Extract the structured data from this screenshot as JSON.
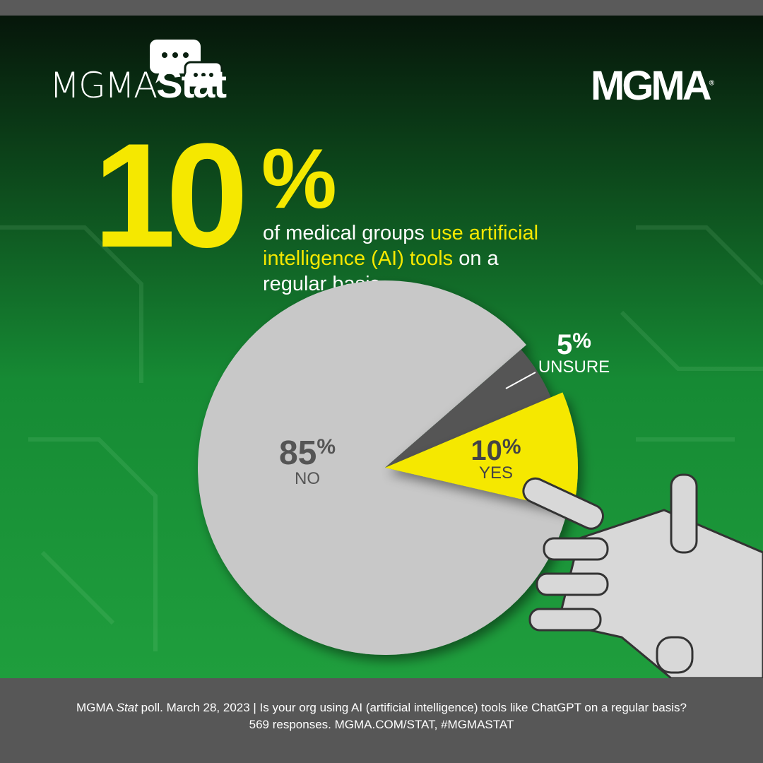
{
  "header": {
    "logo_left": {
      "prefix": "MGMA",
      "suffix": "Stat",
      "icon": "chat-bubbles-icon"
    },
    "logo_right": {
      "text": "MGMA",
      "mark": "®"
    }
  },
  "headline": {
    "big_number": "10",
    "big_percent": "%",
    "text_before": "of medical groups ",
    "text_highlight": "use artificial intelligence (AI) tools",
    "text_after": " on a regular basis."
  },
  "colors": {
    "yes": "#f5e800",
    "no": "#c8c8c8",
    "unsure": "#555555",
    "accent": "#f5e800"
  },
  "chart_data": {
    "type": "pie",
    "categories": [
      "NO",
      "UNSURE",
      "YES"
    ],
    "values": [
      85,
      5,
      10
    ],
    "labels": [
      {
        "value": "85",
        "unit": "%",
        "name": "NO"
      },
      {
        "value": "5",
        "unit": "%",
        "name": "UNSURE"
      },
      {
        "value": "10",
        "unit": "%",
        "name": "YES"
      }
    ],
    "colors": [
      "#c8c8c8",
      "#555555",
      "#f5e800"
    ]
  },
  "footer": {
    "line1_a": "MGMA ",
    "line1_italic": "Stat",
    "line1_b": " poll. March 28, 2023  |  Is your org using AI (artificial intelligence) tools like ChatGPT on a regular basis?",
    "line2": "569 responses. MGMA.COM/STAT, #MGMASTAT"
  }
}
